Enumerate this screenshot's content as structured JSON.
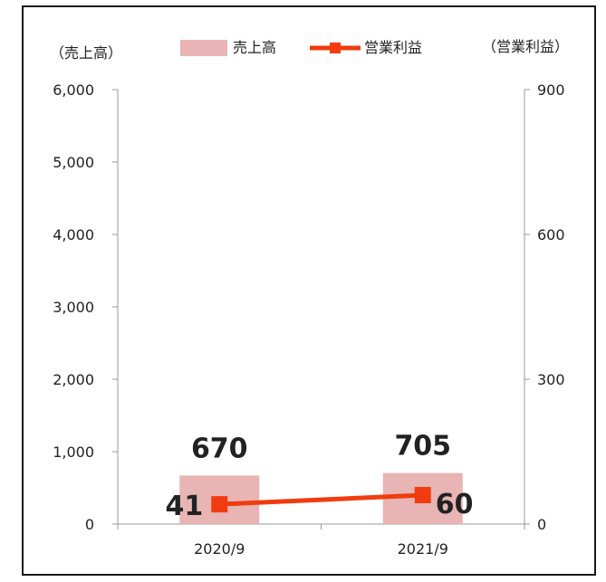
{
  "chart_data": {
    "type": "bar",
    "categories": [
      "2020/9",
      "2021/9"
    ],
    "series": [
      {
        "name": "売上高",
        "type": "bar",
        "axis": "left",
        "values": [
          670,
          705
        ],
        "color": "#e8b4b4"
      },
      {
        "name": "営業利益",
        "type": "line",
        "axis": "right",
        "values": [
          41,
          60
        ],
        "color": "#f03c0f"
      }
    ],
    "left_axis": {
      "label": "（売上高）",
      "ylim": [
        0,
        6000
      ],
      "ticks": [
        "0",
        "1,000",
        "2,000",
        "3,000",
        "4,000",
        "5,000",
        "6,000"
      ]
    },
    "right_axis": {
      "label": "（営業利益）",
      "ylim": [
        0,
        900
      ],
      "ticks": [
        "0",
        "300",
        "600",
        "900"
      ]
    },
    "bar_labels": [
      "670",
      "705"
    ],
    "line_labels": [
      "41",
      "60"
    ],
    "legend_position": "top",
    "grid": false
  }
}
